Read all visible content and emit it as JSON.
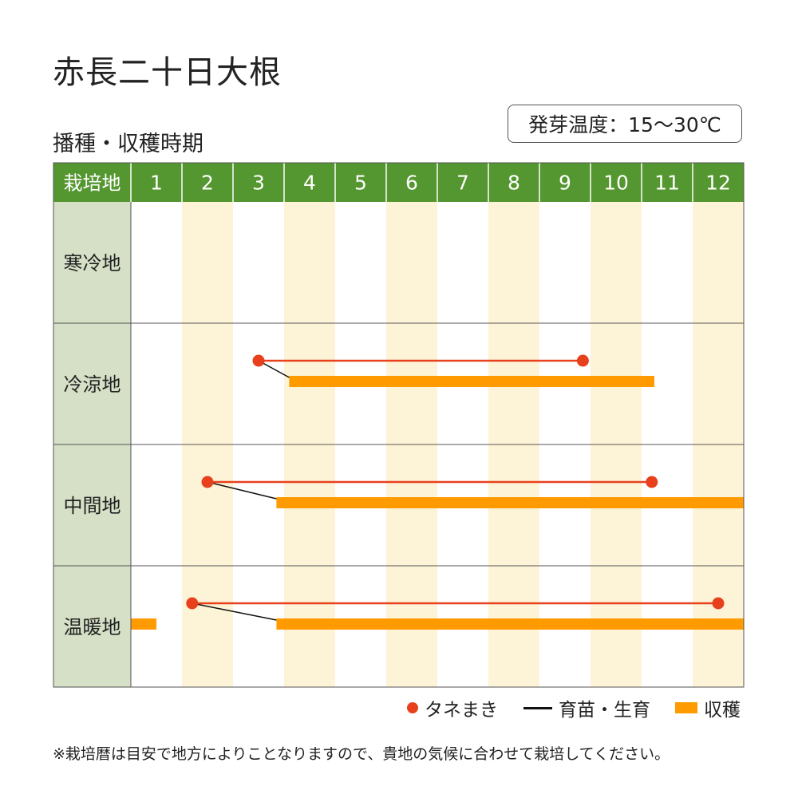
{
  "title": "赤長二十日大根",
  "subtitle": "播種・収穫時期",
  "germination": "発芽温度：15〜30℃",
  "note": "※栽培暦は目安で地方によりことなりますので、貴地の気候に合わせて栽培してください。",
  "legend": {
    "sowing": "タネまき",
    "growing": "育苗・生育",
    "harvest": "収穫"
  },
  "colors": {
    "header_green": "#54962f",
    "region_bg": "#d5e0c6",
    "stripe": "#fdf3d6",
    "sowing": "#e8401c",
    "harvest": "#ff9a00",
    "growing": "#111111"
  },
  "chart_data": {
    "type": "gantt",
    "corner_label": "栽培地",
    "months": [
      "1",
      "2",
      "3",
      "4",
      "5",
      "6",
      "7",
      "8",
      "9",
      "10",
      "11",
      "12"
    ],
    "regions": [
      {
        "name": "寒冷地",
        "sowing": null,
        "harvest": []
      },
      {
        "name": "冷涼地",
        "sowing": [
          3.5,
          9.85
        ],
        "harvest": [
          [
            4.1,
            11.25
          ]
        ]
      },
      {
        "name": "中間地",
        "sowing": [
          2.5,
          11.2
        ],
        "harvest": [
          [
            3.85,
            13
          ]
        ]
      },
      {
        "name": "温暖地",
        "sowing": [
          2.2,
          12.5
        ],
        "harvest": [
          [
            1,
            1.5
          ],
          [
            3.85,
            13
          ]
        ]
      }
    ]
  }
}
